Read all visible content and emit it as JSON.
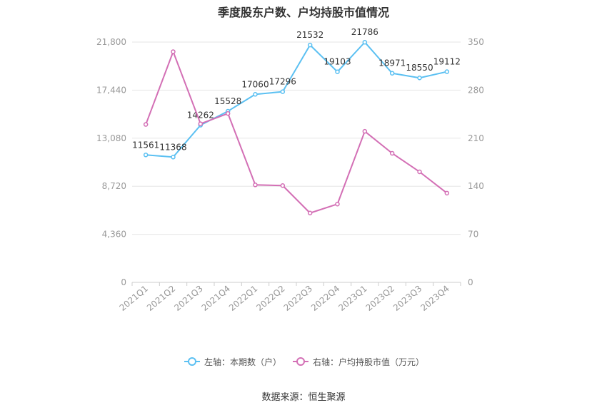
{
  "title": "季度股东户数、户均持股市值情况",
  "source": "数据来源：恒生聚源",
  "colors": {
    "left": "#5bc0f2",
    "right": "#d36fb5",
    "grid": "#e6e6e6",
    "tick": "#999999",
    "label": "#333333"
  },
  "chart_data": {
    "type": "line",
    "categories": [
      "2021Q1",
      "2021Q2",
      "2021Q3",
      "2021Q4",
      "2022Q1",
      "2022Q2",
      "2022Q3",
      "2022Q4",
      "2023Q1",
      "2023Q2",
      "2023Q3",
      "2023Q4"
    ],
    "series": [
      {
        "name": "左轴：本期数（户）",
        "axis": "left",
        "values": [
          11561,
          11368,
          14262,
          15528,
          17060,
          17296,
          21532,
          19103,
          21786,
          18971,
          18550,
          19112
        ],
        "labels": [
          "11561",
          "11368",
          "14262",
          "15528",
          "17060",
          "17296",
          "21532",
          "19103",
          "21786",
          "18971",
          "18550",
          "19112"
        ]
      },
      {
        "name": "右轴：户均持股市值（万元）",
        "axis": "right",
        "values": [
          230,
          336,
          231,
          246,
          142,
          141,
          101,
          114,
          220,
          188,
          161,
          130
        ]
      }
    ],
    "left_axis": {
      "min": 0,
      "max": 21800,
      "ticks": [
        0,
        4360,
        8720,
        13080,
        17440,
        21800
      ],
      "tick_labels": [
        "0",
        "4,360",
        "8,720",
        "13,080",
        "17,440",
        "21,800"
      ]
    },
    "right_axis": {
      "min": 0,
      "max": 350,
      "ticks": [
        0,
        70,
        140,
        210,
        280,
        350
      ],
      "tick_labels": [
        "0",
        "70",
        "140",
        "210",
        "280",
        "350"
      ]
    },
    "grid": true,
    "legend_position": "bottom"
  }
}
